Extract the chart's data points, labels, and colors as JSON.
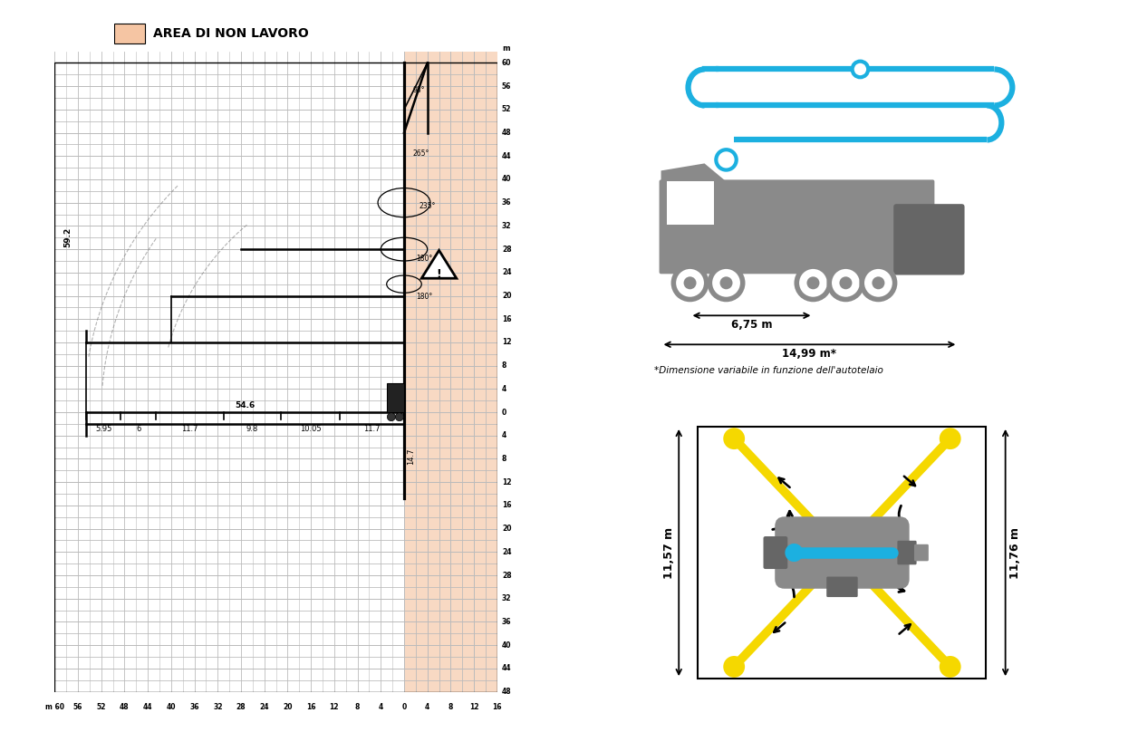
{
  "title": "AREA DI NON LAVORO",
  "bg_color": "#ffffff",
  "grid_color": "#bbbbbb",
  "non_work_color": "#f5c5a3",
  "dim_675": "6,75 m",
  "dim_1499": "14,99 m*",
  "dim_footnote": "*Dimensione variabile in funzione dell'autotelaio",
  "dim_1157": "11,57 m",
  "dim_1176": "11,76 m",
  "blue_color": "#1cb0e0",
  "yellow_color": "#f5d800",
  "gray_color": "#8a8a8a",
  "gray_light": "#aaaaaa",
  "gray_dark": "#666666"
}
